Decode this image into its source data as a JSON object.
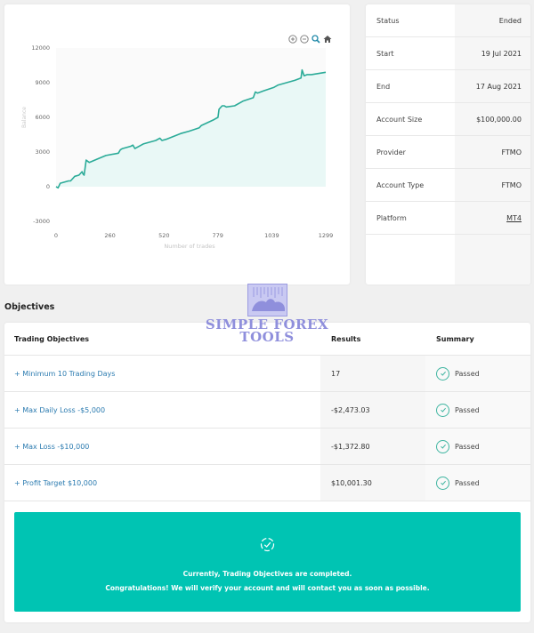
{
  "chart": {
    "toolbar": {
      "zoom_in": "zoom-in",
      "zoom_out": "zoom-out",
      "select_zoom": "magnifier",
      "reset": "home"
    },
    "y_ticks": [
      "12000",
      "9000",
      "6000",
      "3000",
      "0",
      "-3000"
    ],
    "x_ticks": [
      "0",
      "260",
      "520",
      "779",
      "1039",
      "1299"
    ],
    "ylabel": "Balance",
    "xlabel": "Number of trades",
    "line_color": "#2bab98",
    "fill_color": "#e9f8f6"
  },
  "chart_data": {
    "type": "area",
    "title": "",
    "xlabel": "Number of trades",
    "ylabel": "Balance",
    "x_ticks": [
      0,
      260,
      520,
      779,
      1039,
      1299
    ],
    "y_ticks": [
      -3000,
      0,
      3000,
      6000,
      9000,
      12000
    ],
    "xlim": [
      0,
      1299
    ],
    "ylim": [
      -3000,
      12000
    ],
    "grid": false,
    "series": [
      {
        "name": "Balance",
        "x": [
          0,
          10,
          20,
          60,
          70,
          90,
          110,
          125,
          130,
          135,
          145,
          160,
          200,
          240,
          300,
          310,
          320,
          360,
          370,
          380,
          420,
          480,
          500,
          510,
          530,
          600,
          640,
          690,
          700,
          760,
          780,
          785,
          800,
          810,
          820,
          860,
          900,
          950,
          960,
          970,
          1000,
          1050,
          1070,
          1150,
          1180,
          1185,
          1195,
          1210,
          1230,
          1299
        ],
        "values": [
          0,
          -100,
          300,
          500,
          500,
          900,
          1000,
          1300,
          1100,
          1000,
          2300,
          2100,
          2400,
          2700,
          2900,
          3200,
          3300,
          3500,
          3600,
          3300,
          3700,
          4000,
          4200,
          4000,
          4100,
          4600,
          4800,
          5100,
          5300,
          5800,
          6000,
          6700,
          7000,
          7000,
          6900,
          7000,
          7400,
          7700,
          8200,
          8100,
          8300,
          8600,
          8800,
          9200,
          9400,
          10100,
          9600,
          9700,
          9700,
          9900
        ]
      }
    ]
  },
  "info": {
    "rows": [
      {
        "label": "Status",
        "value": "Ended"
      },
      {
        "label": "Start",
        "value": "19 Jul 2021"
      },
      {
        "label": "End",
        "value": "17 Aug 2021"
      },
      {
        "label": "Account Size",
        "value": "$100,000.00"
      },
      {
        "label": "Provider",
        "value": "FTMO"
      },
      {
        "label": "Account Type",
        "value": "FTMO"
      },
      {
        "label": "Platform",
        "value": "MT4"
      }
    ]
  },
  "objectives": {
    "section_title": "Objectives",
    "headers": {
      "objective": "Trading Objectives",
      "results": "Results",
      "summary": "Summary"
    },
    "rows": [
      {
        "objective": "+ Minimum 10 Trading Days",
        "result": "17",
        "summary": "Passed"
      },
      {
        "objective": "+ Max Daily Loss -$5,000",
        "result": "-$2,473.03",
        "summary": "Passed"
      },
      {
        "objective": "+ Max Loss -$10,000",
        "result": "-$1,372.80",
        "summary": "Passed"
      },
      {
        "objective": "+ Profit Target $10,000",
        "result": "$10,001.30",
        "summary": "Passed"
      }
    ],
    "banner": {
      "line1": "Currently, Trading Objectives are completed.",
      "line2": "Congratulations! We will verify your account and will contact you as soon as possible.",
      "color": "#00c4b3"
    }
  },
  "watermark": {
    "text_line1": "SIMPLE FOREX",
    "text_line2": "TOOLS"
  }
}
